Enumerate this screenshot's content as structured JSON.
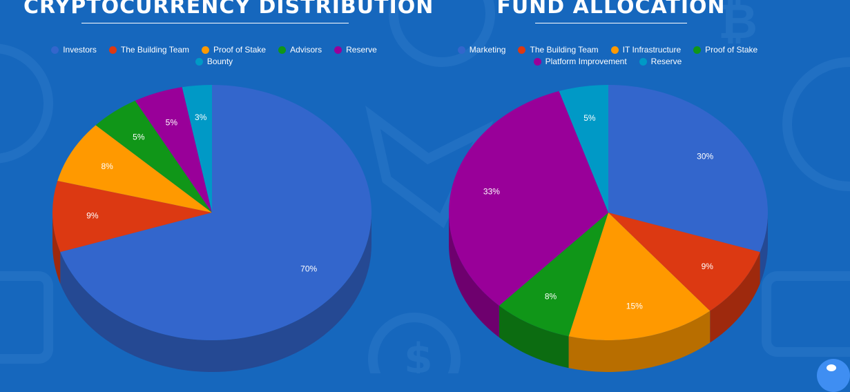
{
  "chart_data": [
    {
      "type": "pie",
      "title": "CRYPTOCURRENCY DISTRIBUTION",
      "categories": [
        "Investors",
        "The Building Team",
        "Proof of Stake",
        "Advisors",
        "Reserve",
        "Bounty"
      ],
      "values": [
        70,
        9,
        8,
        5,
        5,
        3
      ],
      "labels": [
        "70%",
        "9%",
        "8%",
        "5%",
        "5%",
        "3%"
      ],
      "colors": [
        "#3366cc",
        "#dc3912",
        "#ff9900",
        "#109618",
        "#990099",
        "#0099c6"
      ],
      "legend_position": "top"
    },
    {
      "type": "pie",
      "title": "FUND ALLOCATION",
      "categories": [
        "Marketing",
        "The Building Team",
        "IT Infrastructure",
        "Proof of Stake",
        "Platform Improvement",
        "Reserve"
      ],
      "values": [
        30,
        9,
        15,
        8,
        33,
        5
      ],
      "labels": [
        "30%",
        "9%",
        "15%",
        "8%",
        "33%",
        "5%"
      ],
      "colors": [
        "#3366cc",
        "#dc3912",
        "#ff9900",
        "#109618",
        "#990099",
        "#0099c6"
      ],
      "legend_position": "top"
    }
  ]
}
